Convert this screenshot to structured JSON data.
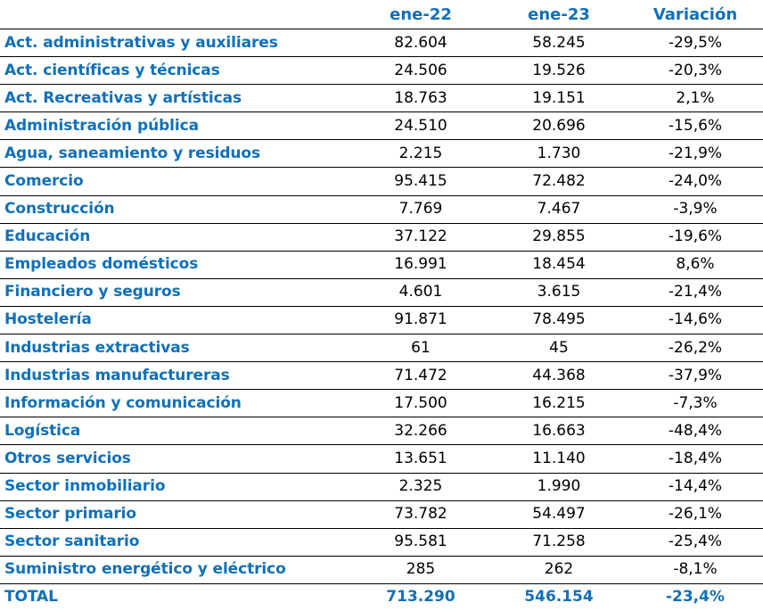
{
  "table": {
    "headers": [
      "",
      "ene-22",
      "ene-23",
      "Variación"
    ],
    "rows": [
      {
        "sector": "Act. administrativas y auxiliares",
        "ene22": "82.604",
        "ene23": "58.245",
        "variacion": "-29,5%"
      },
      {
        "sector": "Act. científicas y técnicas",
        "ene22": "24.506",
        "ene23": "19.526",
        "variacion": "-20,3%"
      },
      {
        "sector": "Act. Recreativas y artísticas",
        "ene22": "18.763",
        "ene23": "19.151",
        "variacion": "2,1%"
      },
      {
        "sector": "Administración pública",
        "ene22": "24.510",
        "ene23": "20.696",
        "variacion": "-15,6%"
      },
      {
        "sector": "Agua, saneamiento y residuos",
        "ene22": "2.215",
        "ene23": "1.730",
        "variacion": "-21,9%"
      },
      {
        "sector": "Comercio",
        "ene22": "95.415",
        "ene23": "72.482",
        "variacion": "-24,0%"
      },
      {
        "sector": "Construcción",
        "ene22": "7.769",
        "ene23": "7.467",
        "variacion": "-3,9%"
      },
      {
        "sector": "Educación",
        "ene22": "37.122",
        "ene23": "29.855",
        "variacion": "-19,6%"
      },
      {
        "sector": "Empleados domésticos",
        "ene22": "16.991",
        "ene23": "18.454",
        "variacion": "8,6%"
      },
      {
        "sector": "Financiero y seguros",
        "ene22": "4.601",
        "ene23": "3.615",
        "variacion": "-21,4%"
      },
      {
        "sector": "Hostelería",
        "ene22": "91.871",
        "ene23": "78.495",
        "variacion": "-14,6%"
      },
      {
        "sector": "Industrias extractivas",
        "ene22": "61",
        "ene23": "45",
        "variacion": "-26,2%"
      },
      {
        "sector": "Industrias manufactureras",
        "ene22": "71.472",
        "ene23": "44.368",
        "variacion": "-37,9%"
      },
      {
        "sector": "Información y comunicación",
        "ene22": "17.500",
        "ene23": "16.215",
        "variacion": "-7,3%"
      },
      {
        "sector": "Logística",
        "ene22": "32.266",
        "ene23": "16.663",
        "variacion": "-48,4%"
      },
      {
        "sector": "Otros servicios",
        "ene22": "13.651",
        "ene23": "11.140",
        "variacion": "-18,4%"
      },
      {
        "sector": "Sector inmobiliario",
        "ene22": "2.325",
        "ene23": "1.990",
        "variacion": "-14,4%"
      },
      {
        "sector": "Sector primario",
        "ene22": "73.782",
        "ene23": "54.497",
        "variacion": "-26,1%"
      },
      {
        "sector": "Sector sanitario",
        "ene22": "95.581",
        "ene23": "71.258",
        "variacion": "-25,4%"
      },
      {
        "sector": "Suministro energético y eléctrico",
        "ene22": "285",
        "ene23": "262",
        "variacion": "-8,1%"
      }
    ],
    "total": {
      "sector": "TOTAL",
      "ene22": "713.290",
      "ene23": "546.154",
      "variacion": "-23,4%"
    }
  },
  "colors": {
    "accent": "#1070b8",
    "text": "#000000",
    "rule": "#000000"
  }
}
